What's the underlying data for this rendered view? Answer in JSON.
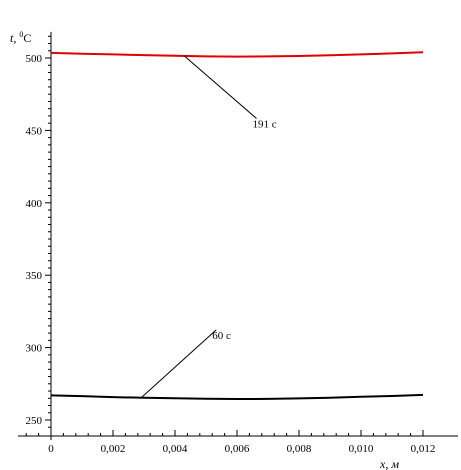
{
  "chart_data": {
    "type": "line",
    "xlabel": "x, м",
    "ylabel_main": "t,",
    "ylabel_sup": "0",
    "ylabel_unit": "C",
    "xlim": [
      0,
      0.0123
    ],
    "ylim": [
      240,
      518
    ],
    "x_ticks": [
      {
        "value": 0,
        "label": "0"
      },
      {
        "value": 0.002,
        "label": "0,002"
      },
      {
        "value": 0.004,
        "label": "0,004"
      },
      {
        "value": 0.006,
        "label": "0,006"
      },
      {
        "value": 0.008,
        "label": "0,008"
      },
      {
        "value": 0.01,
        "label": "0,010"
      },
      {
        "value": 0.012,
        "label": "0,012"
      }
    ],
    "y_ticks": [
      {
        "value": 250,
        "label": "250"
      },
      {
        "value": 300,
        "label": "300"
      },
      {
        "value": 350,
        "label": "350"
      },
      {
        "value": 400,
        "label": "400"
      },
      {
        "value": 450,
        "label": "450"
      },
      {
        "value": 500,
        "label": "500"
      }
    ],
    "series": [
      {
        "color": "#e00000",
        "x": [
          0,
          0.001,
          0.002,
          0.003,
          0.004,
          0.005,
          0.006,
          0.007,
          0.008,
          0.009,
          0.01,
          0.011,
          0.012
        ],
        "y": [
          503.5,
          503,
          502.5,
          502,
          501.5,
          501.1,
          501,
          501.1,
          501.4,
          501.9,
          502.5,
          503.2,
          504
        ]
      },
      {
        "color": "#000000",
        "x": [
          0,
          0.001,
          0.002,
          0.003,
          0.004,
          0.005,
          0.006,
          0.007,
          0.008,
          0.009,
          0.01,
          0.011,
          0.012
        ],
        "y": [
          267,
          266.5,
          265.8,
          265.3,
          265,
          264.7,
          264.5,
          264.6,
          264.9,
          265.4,
          266,
          266.6,
          267.3
        ]
      }
    ],
    "annotations": [
      {
        "label": "191 с",
        "point": {
          "x": 0.0043,
          "y": 501.5
        },
        "text": {
          "x": 0.0065,
          "y": 452
        }
      },
      {
        "label": "60 с",
        "point": {
          "x": 0.0029,
          "y": 265.2
        },
        "text": {
          "x": 0.0052,
          "y": 306
        }
      }
    ]
  }
}
